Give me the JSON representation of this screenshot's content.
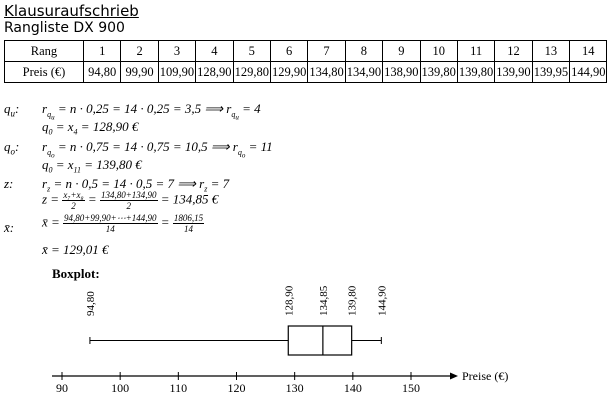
{
  "title": "Klausuraufschrieb",
  "subtitle": "Rangliste DX 900",
  "table": {
    "row1_header": "Rang",
    "row2_header": "Preis (€)",
    "ranks": [
      "1",
      "2",
      "3",
      "4",
      "5",
      "6",
      "7",
      "8",
      "9",
      "10",
      "11",
      "12",
      "13",
      "14"
    ],
    "prices": [
      "94,80",
      "99,90",
      "109,90",
      "128,90",
      "129,80",
      "129,90",
      "134,80",
      "134,90",
      "138,90",
      "139,80",
      "139,80",
      "139,90",
      "139,95",
      "144,90"
    ]
  },
  "calc": {
    "qu_label": "q",
    "qu_sub": "u",
    "qu_line1_a": "r",
    "qu_line1_b": " = n · 0,25 = 14 · 0,25 = 3,5 ⟹ ",
    "qu_line1_c": " = 4",
    "qu_line2": " = x",
    "qu_line2_sub": "4",
    "qu_line2_end": " = 128,90 €",
    "qo_label": "q",
    "qo_sub": "o",
    "qo_line1_b": " = n · 0,75 = 14 · 0,75 = 10,5 ⟹ ",
    "qo_line1_c": " = 11",
    "qo_line2_sub": "11",
    "qo_line2_end": " = 139,80 €",
    "z_label": "z:",
    "z_line1": " = n · 0,5 = 14 · 0,5 = 7 ⟹ ",
    "z_line1_c": " = 7",
    "z_line2_start": "z = ",
    "z_frac1_num": "x₇+x₈",
    "z_frac1_den": "2",
    "z_frac2_num": "134,80+134,90",
    "z_frac2_den": "2",
    "z_line2_end": " = 134,85 €",
    "xbar_label": "x̄:",
    "xbar_line1_start": "x̄ = ",
    "xbar_frac1_num": "94,80+99,90+⋯+144,90",
    "xbar_frac1_den": "14",
    "xbar_frac2_num": "1806,15",
    "xbar_frac2_den": "14",
    "xbar_line2": "x̄ = 129,01 €"
  },
  "boxplot": {
    "heading": "Boxplot:",
    "axis_label": "Preise (€)",
    "ticks": [
      90,
      100,
      110,
      120,
      130,
      140,
      150
    ],
    "min": 94.8,
    "q1": 128.9,
    "median": 134.85,
    "q3": 139.8,
    "max": 144.9,
    "value_labels": [
      "94,80",
      "128,90",
      "134,85",
      "139,80",
      "144,90"
    ],
    "axis_range": [
      90,
      155
    ]
  }
}
